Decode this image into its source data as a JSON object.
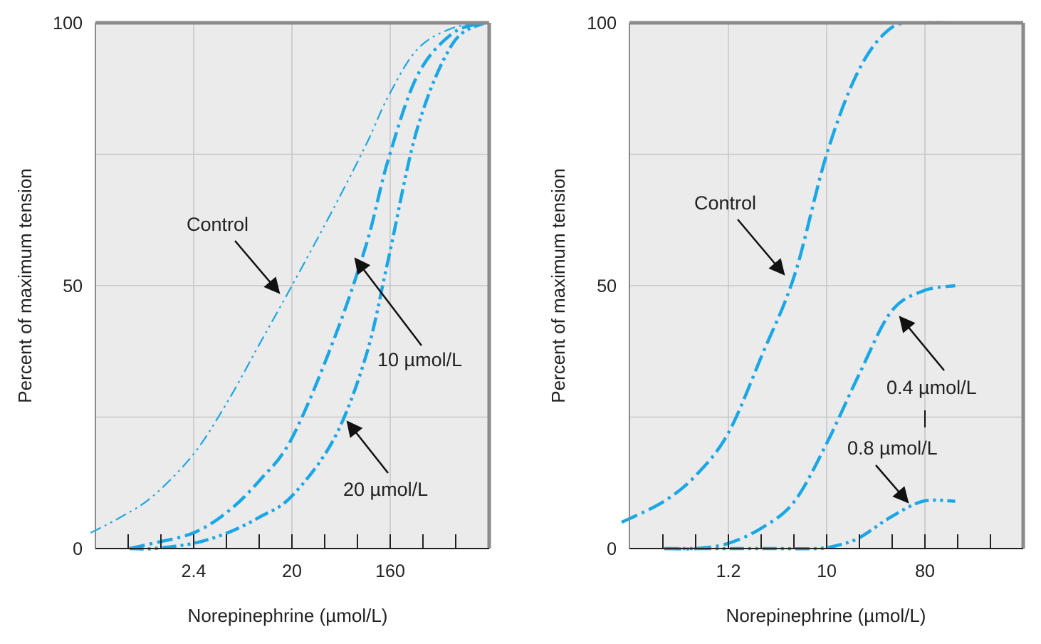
{
  "colors": {
    "curve": "#1aa7e6",
    "plot_bg": "#ebebeb",
    "grid": "#c6c6c6",
    "frame": "#8a8a8a",
    "text": "#222222"
  },
  "chart_data": [
    {
      "type": "line",
      "xlabel": "Norepinephrine (µmol/L)",
      "ylabel": "Percent of maximum tension",
      "x_scale": "log",
      "x_ticks": [
        "2.4",
        "20",
        "160"
      ],
      "y_ticks": [
        "0",
        "50",
        "100"
      ],
      "ylim": [
        0,
        100
      ],
      "grid": true,
      "series": [
        {
          "name": "Control",
          "x": [
            0.26,
            0.5,
            1,
            2.4,
            5,
            10,
            20,
            50,
            100,
            160,
            300,
            640,
            1280
          ],
          "y": [
            3,
            6,
            10,
            18,
            28,
            39,
            50,
            65,
            77,
            86,
            95,
            99,
            100
          ]
        },
        {
          "name": "10 µmol/L",
          "x": [
            0.6,
            1,
            2.4,
            5,
            10,
            20,
            50,
            100,
            160,
            300,
            640,
            1280
          ],
          "y": [
            0,
            1,
            3,
            7,
            13,
            21,
            40,
            58,
            74,
            90,
            98,
            100
          ]
        },
        {
          "name": "20 µmol/L",
          "x": [
            0.6,
            1,
            2.4,
            5,
            10,
            20,
            50,
            100,
            160,
            300,
            640,
            1280
          ],
          "y": [
            0,
            0,
            1,
            3,
            6,
            10,
            21,
            37,
            55,
            80,
            96,
            100
          ]
        }
      ],
      "annotations": [
        "Control",
        "10 µmol/L",
        "20 µmol/L"
      ]
    },
    {
      "type": "line",
      "xlabel": "Norepinephrine (µmol/L)",
      "ylabel": "Percent of maximum tension",
      "x_scale": "log",
      "x_ticks": [
        "1.2",
        "10",
        "80"
      ],
      "y_ticks": [
        "0",
        "50",
        "100"
      ],
      "ylim": [
        0,
        100
      ],
      "grid": true,
      "series": [
        {
          "name": "Control",
          "x": [
            0.12,
            0.3,
            0.6,
            1.2,
            2.5,
            5,
            10,
            20,
            40,
            80,
            160
          ],
          "y": [
            5,
            9,
            14,
            22,
            37,
            52,
            75,
            91,
            99,
            100,
            100
          ]
        },
        {
          "name": "0.4 µmol/L",
          "x": [
            0.3,
            0.6,
            1.2,
            2.5,
            5,
            10,
            20,
            40,
            80,
            160
          ],
          "y": [
            0,
            0,
            1,
            4,
            9,
            20,
            33,
            45,
            49,
            50
          ]
        },
        {
          "name": "0.8 µmol/L",
          "x": [
            0.3,
            1,
            3,
            8,
            12,
            20,
            40,
            80,
            160
          ],
          "y": [
            0,
            0,
            0,
            0,
            0.5,
            2,
            6,
            9,
            9
          ]
        }
      ],
      "annotations": [
        "Control",
        "0.4 µmol/L",
        "0.8 µmol/L"
      ]
    }
  ]
}
